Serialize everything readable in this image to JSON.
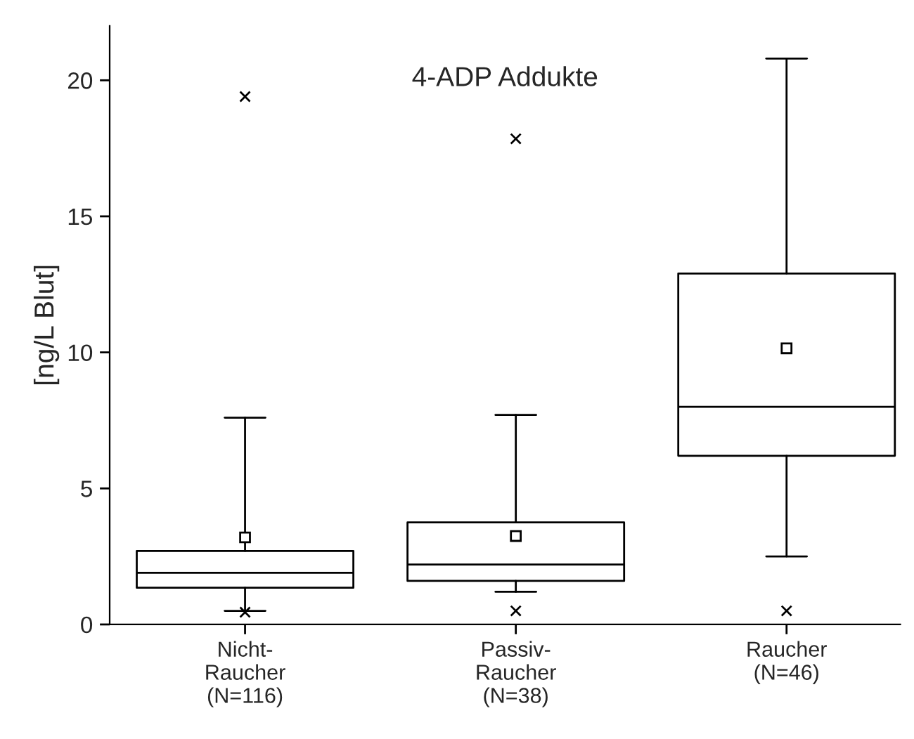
{
  "chart_data": {
    "type": "box",
    "title": "4-ADP Addukte",
    "ylabel": "[ng/L Blut]",
    "categories": [
      "Nicht-\nRaucher\n(N=116)",
      "Passiv-\nRaucher\n(N=38)",
      "Raucher\n(N=46)"
    ],
    "boxes": [
      {
        "low": 0.5,
        "q1": 1.35,
        "median": 1.9,
        "q3": 2.7,
        "high": 7.6,
        "mean": 3.2,
        "outliers": [
          0.45,
          19.4
        ]
      },
      {
        "low": 1.2,
        "q1": 1.6,
        "median": 2.2,
        "q3": 3.75,
        "high": 7.7,
        "mean": 3.25,
        "outliers": [
          0.5,
          17.85
        ]
      },
      {
        "low": 2.5,
        "q1": 6.2,
        "median": 8.0,
        "q3": 12.9,
        "high": 20.8,
        "mean": 10.15,
        "outliers": [
          0.5
        ]
      }
    ],
    "ylim": [
      0,
      22
    ],
    "yticks": [
      0,
      5,
      10,
      15,
      20
    ],
    "grid": false,
    "legend": false
  }
}
